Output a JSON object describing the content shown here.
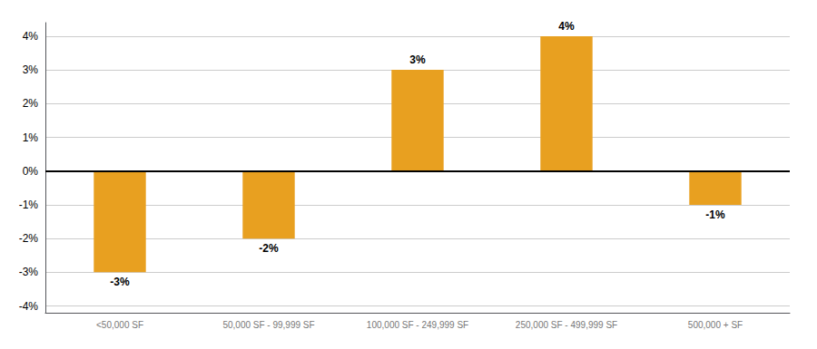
{
  "chart_data": {
    "type": "bar",
    "categories": [
      "<50,000 SF",
      "50,000 SF - 99,999 SF",
      "100,000 SF - 249,999 SF",
      "250,000 SF - 499,999 SF",
      "500,000 + SF"
    ],
    "values": [
      -3,
      -2,
      3,
      4,
      -1
    ],
    "value_labels": [
      "-3%",
      "-2%",
      "3%",
      "4%",
      "-1%"
    ],
    "data_labels": true,
    "color": "#E8A020",
    "ylim": [
      -4.2,
      4.4
    ],
    "yticks": [
      {
        "value": -4,
        "label": "-4%"
      },
      {
        "value": -3,
        "label": "-3%"
      },
      {
        "value": -2,
        "label": "-2%"
      },
      {
        "value": -1,
        "label": "-1%"
      },
      {
        "value": 0,
        "label": "0%"
      },
      {
        "value": 1,
        "label": "1%"
      },
      {
        "value": 2,
        "label": "2%"
      },
      {
        "value": 3,
        "label": "3%"
      },
      {
        "value": 4,
        "label": "4%"
      }
    ],
    "grid": true
  }
}
